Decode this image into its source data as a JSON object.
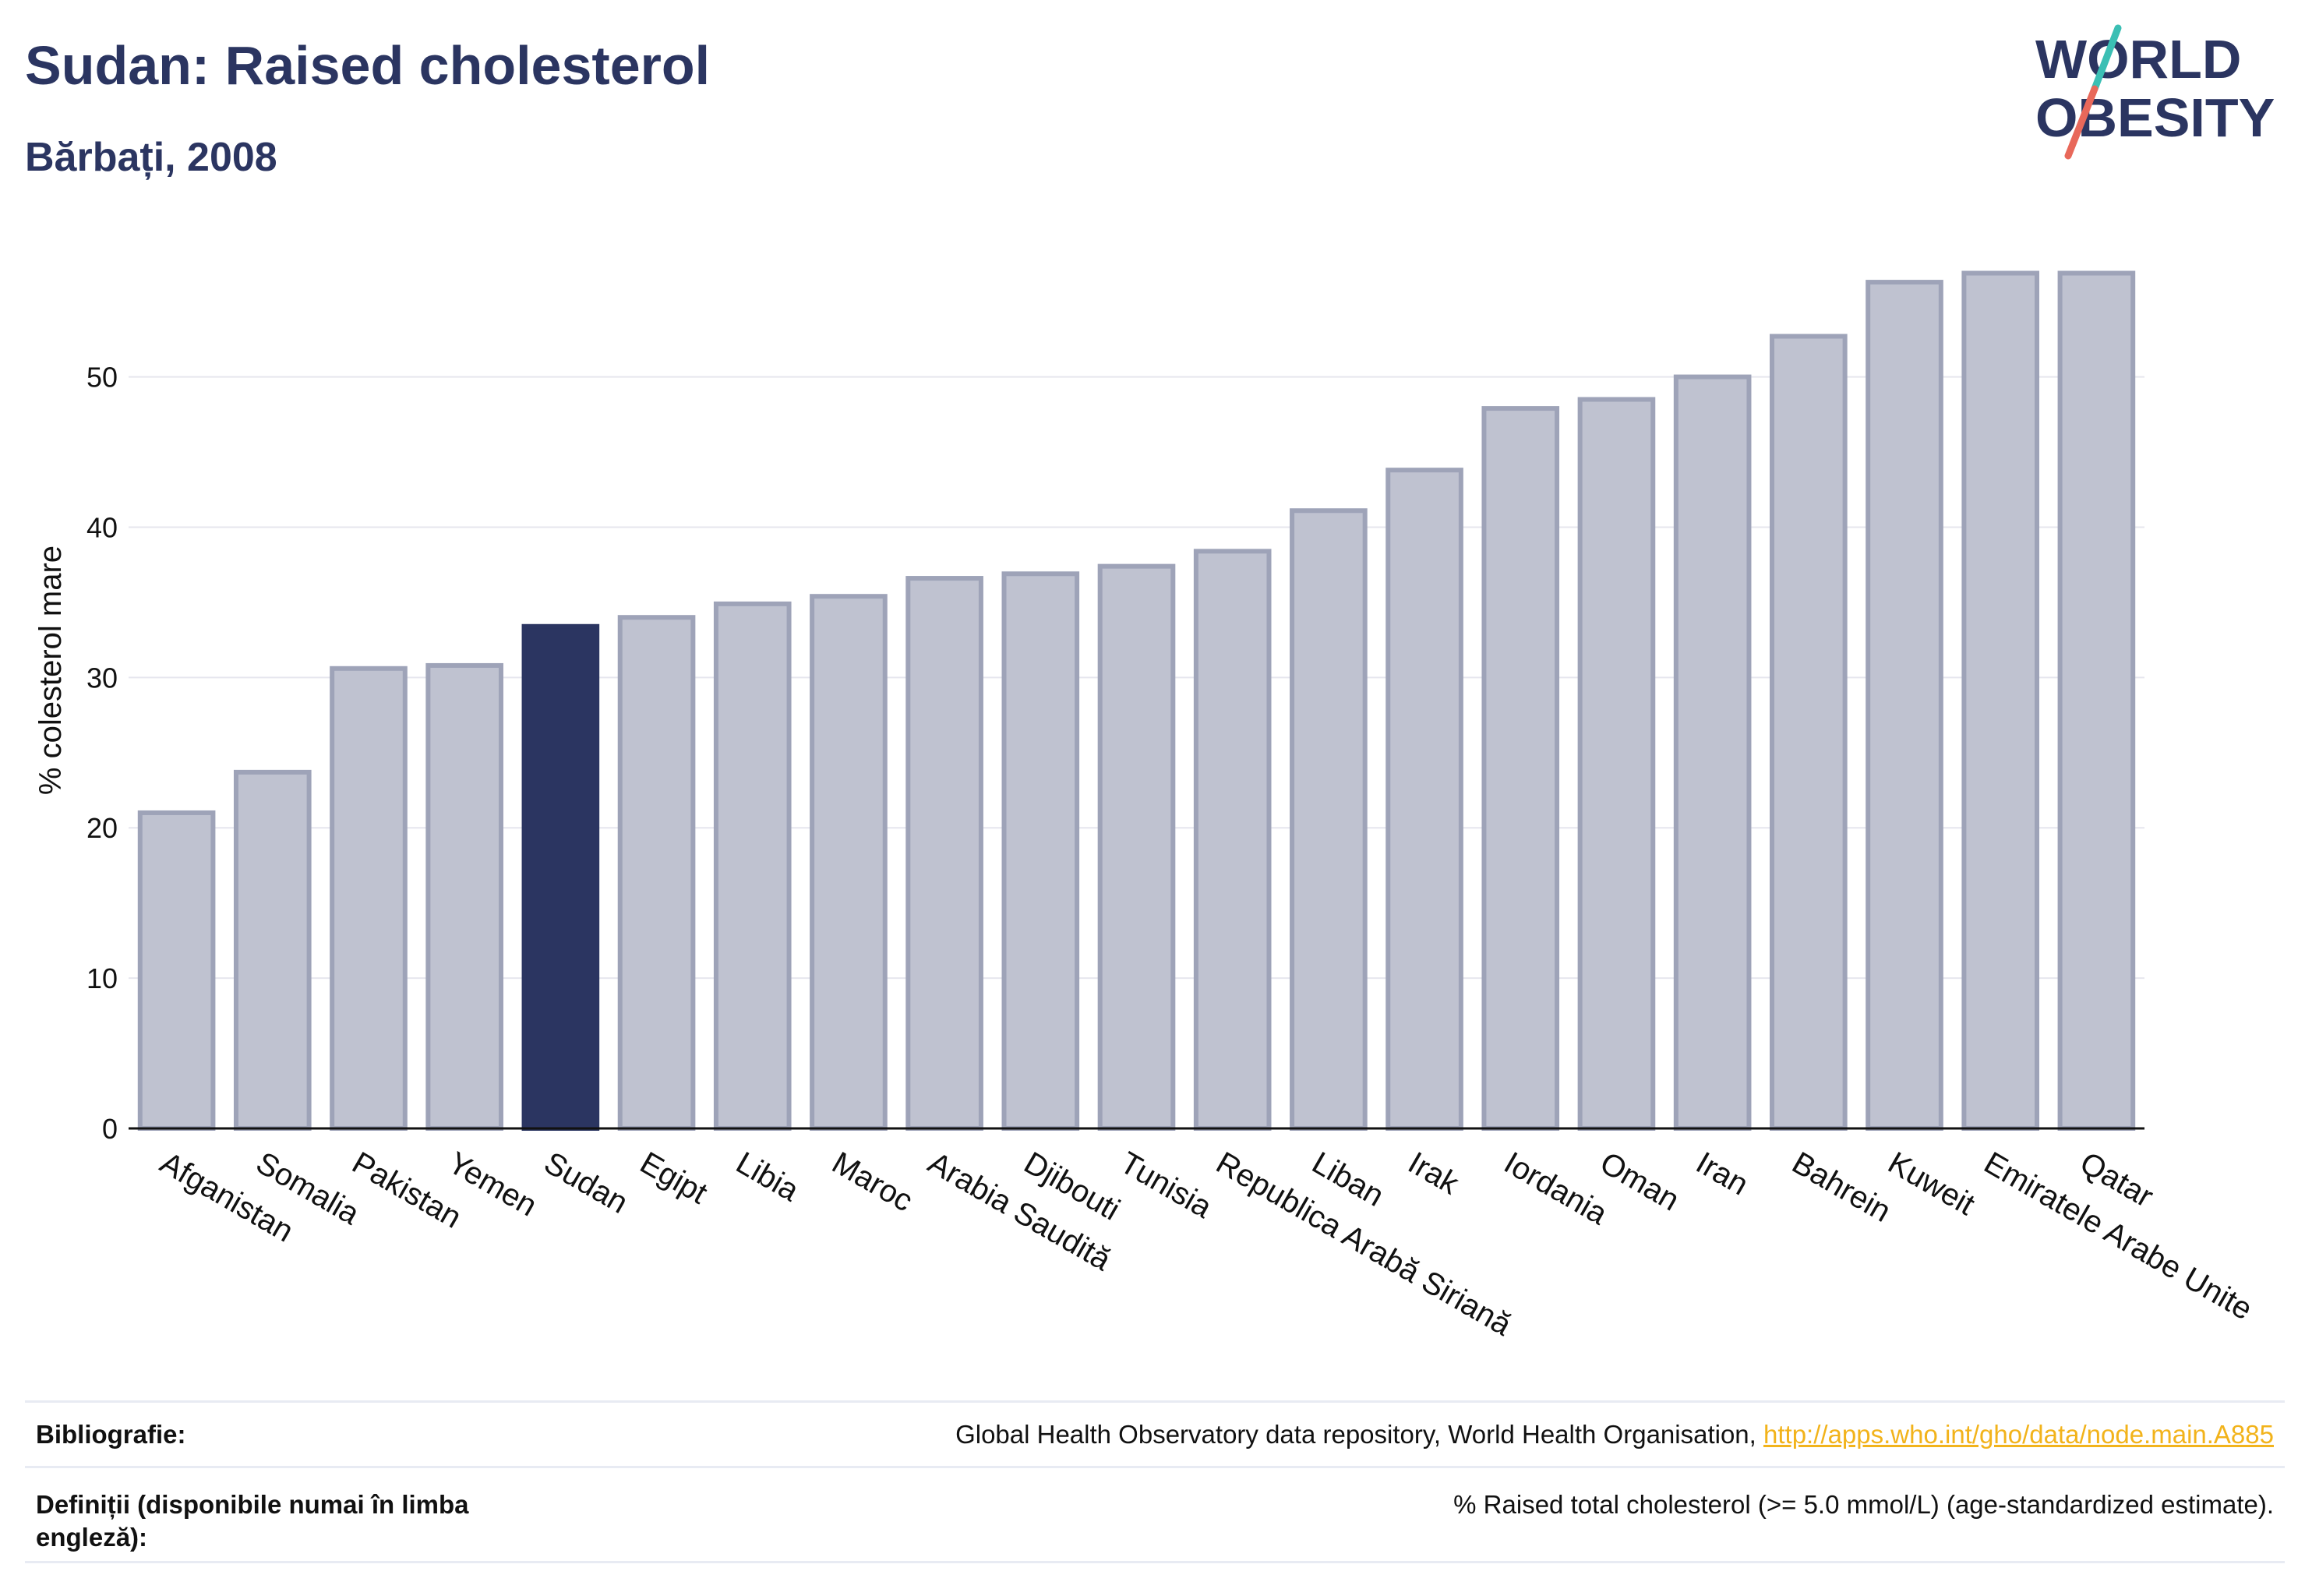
{
  "header": {
    "title": "Sudan: Raised cholesterol",
    "subtitle": "Bărbați, 2008"
  },
  "logo": {
    "line1": "WORLD",
    "line2": "OBESITY"
  },
  "colors": {
    "highlight": "#2b3561",
    "bar_fill": "#bfc2d0",
    "bar_stroke": "#9ea3b8",
    "grid": "#e6e6ee",
    "text_dark": "#2b3561",
    "link": "#f2b31b"
  },
  "chart_data": {
    "type": "bar",
    "title": "Sudan: Raised cholesterol",
    "subtitle": "Bărbați, 2008",
    "xlabel": "",
    "ylabel": "% colesterol mare",
    "ylim": [
      0,
      59
    ],
    "yticks": [
      0,
      10,
      20,
      30,
      40,
      50
    ],
    "grid": true,
    "highlight_category": "Sudan",
    "categories": [
      "Afganistan",
      "Somalia",
      "Pakistan",
      "Yemen",
      "Sudan",
      "Egipt",
      "Libia",
      "Maroc",
      "Arabia Saudită",
      "Djibouti",
      "Tunisia",
      "Republica Arabă Siriană",
      "Liban",
      "Irak",
      "Iordania",
      "Oman",
      "Iran",
      "Bahrein",
      "Kuweit",
      "Emiratele Arabe Unite",
      "Qatar"
    ],
    "values": [
      21.0,
      23.7,
      30.6,
      30.8,
      33.4,
      34.0,
      34.9,
      35.4,
      36.6,
      36.9,
      37.4,
      38.4,
      41.1,
      43.8,
      47.9,
      48.5,
      50.0,
      52.7,
      56.3,
      56.9,
      56.9
    ]
  },
  "footer": {
    "bibliography_label": "Bibliografie:",
    "bibliography_text": "Global Health Observatory data repository, World Health Organisation, ",
    "bibliography_link": "http://apps.who.int/gho/data/node.main.A885",
    "definitions_label_line1": "Definiții (disponibile numai în limba",
    "definitions_label_line2": "engleză):",
    "definitions_text": "% Raised total cholesterol (>= 5.0 mmol/L) (age-standardized estimate)."
  }
}
